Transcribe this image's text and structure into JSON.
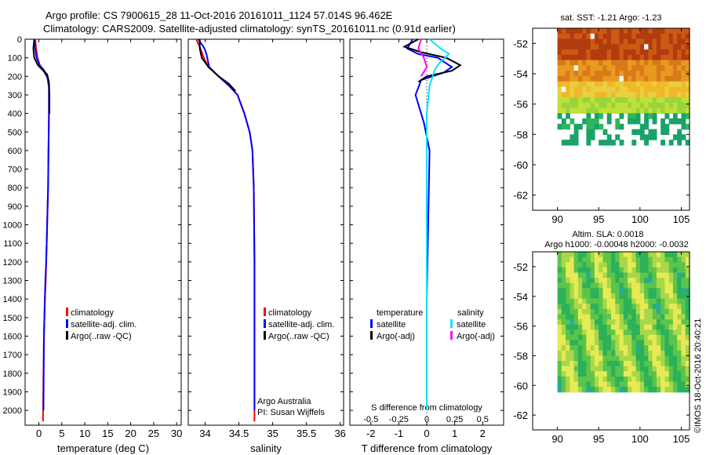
{
  "header": {
    "title_line1": "Argo profile: CS 7900615_28 11-Oct-2016 20161011_1124 57.014S 96.462E",
    "title_line2": "Climatology: CARS2009. Satellite-adjusted climatology: synTS_20161011.nc (0.91d earlier)"
  },
  "colors": {
    "climatology": "#ff0000",
    "satellite": "#0000ff",
    "argo": "#000000",
    "sat_salinity": "#00e5ff",
    "argo_salinity": "#ff00ff"
  },
  "chart_data": [
    {
      "type": "line",
      "panel": "temperature",
      "xlabel": "temperature (deg C)",
      "xlim": [
        -3,
        31
      ],
      "xticks": [
        0,
        5,
        10,
        15,
        20,
        25,
        30
      ],
      "ylim": [
        2080,
        0
      ],
      "yticks": [
        0,
        100,
        200,
        300,
        400,
        500,
        600,
        700,
        800,
        900,
        1000,
        1100,
        1200,
        1300,
        1400,
        1500,
        1600,
        1700,
        1800,
        1900,
        2000
      ],
      "legend": [
        "climatology",
        "satellite-adj. clim.",
        "Argo(..raw -QC)"
      ],
      "series": [
        {
          "name": "climatology",
          "x": [
            -0.8,
            -0.6,
            -0.3,
            0.2,
            1.0,
            1.9,
            2.2,
            2.2,
            2.1,
            2.0,
            1.8,
            1.6,
            1.5,
            1.3,
            1.2,
            1.1,
            1.0,
            0.9
          ],
          "y": [
            0,
            50,
            100,
            140,
            170,
            210,
            260,
            400,
            600,
            800,
            1000,
            1200,
            1300,
            1400,
            1500,
            1600,
            1800,
            2060
          ]
        },
        {
          "name": "satellite-adj. clim.",
          "x": [
            -1.0,
            -0.8,
            -0.5,
            0.2,
            1.2,
            1.9,
            2.2,
            2.2,
            2.1,
            2.0,
            1.8,
            1.6,
            1.4,
            1.3,
            1.2,
            1.1,
            1.0
          ],
          "y": [
            0,
            50,
            100,
            140,
            170,
            210,
            260,
            400,
            600,
            800,
            1000,
            1200,
            1300,
            1400,
            1500,
            1600,
            2000
          ]
        },
        {
          "name": "Argo(..raw -QC)",
          "x": [
            -1.0,
            -1.2,
            -1.0,
            -0.2,
            0.8,
            1.8,
            2.2,
            2.3,
            2.3
          ],
          "y": [
            0,
            50,
            100,
            140,
            165,
            190,
            230,
            300,
            400
          ]
        }
      ]
    },
    {
      "type": "line",
      "panel": "salinity",
      "xlabel": "salinity",
      "xlim": [
        33.75,
        36.05
      ],
      "xticks": [
        34,
        34.5,
        35,
        35.5,
        36
      ],
      "ylim": [
        2080,
        0
      ],
      "legend": [
        "climatology",
        "satellite-adj. clim.",
        "Argo(..raw -QC)"
      ],
      "annotation": [
        "Argo Australia",
        "PI: Susan Wijffels"
      ],
      "series": [
        {
          "name": "climatology",
          "x": [
            33.87,
            33.93,
            33.98,
            34.05,
            34.2,
            34.35,
            34.48,
            34.58,
            34.66,
            34.7,
            34.72,
            34.73,
            34.73,
            34.73
          ],
          "y": [
            0,
            50,
            100,
            150,
            200,
            250,
            300,
            400,
            500,
            600,
            800,
            1200,
            1600,
            2060
          ]
        },
        {
          "name": "satellite-adj. clim.",
          "x": [
            33.9,
            33.99,
            34.02,
            34.06,
            34.2,
            34.35,
            34.48,
            34.58,
            34.66,
            34.7,
            34.72,
            34.73,
            34.73,
            34.73
          ],
          "y": [
            0,
            50,
            80,
            150,
            200,
            250,
            300,
            400,
            500,
            600,
            800,
            1200,
            1600,
            2000
          ]
        },
        {
          "name": "Argo(..raw -QC)",
          "x": [
            33.92,
            33.92,
            33.95,
            34.05,
            34.2,
            34.35,
            34.45
          ],
          "y": [
            0,
            50,
            100,
            150,
            200,
            240,
            280
          ]
        }
      ]
    },
    {
      "type": "line",
      "panel": "difference",
      "xlabel": "T difference from climatology",
      "xlabel_top": "S difference from climatology",
      "xlim": [
        -2.75,
        2.75
      ],
      "xticks": [
        -2,
        -1,
        0,
        1,
        2
      ],
      "xticks_top": [
        -0.5,
        -0.25,
        0,
        0.25,
        0.5
      ],
      "ylim": [
        2080,
        0
      ],
      "legend_headers": [
        "temperature",
        "salinity"
      ],
      "legend": [
        "satellite",
        "Argo(-adj)",
        "satellite",
        "Argo(-adj)"
      ],
      "series": [
        {
          "name": "satellite",
          "kind": "temperature",
          "x": [
            -0.5,
            -0.7,
            -0.3,
            0.4,
            0.9,
            0.6,
            -0.2,
            -0.4,
            -0.1,
            0.1,
            0.05,
            0.0,
            0.0,
            0.0
          ],
          "y": [
            0,
            50,
            80,
            100,
            150,
            180,
            220,
            300,
            450,
            600,
            1000,
            1400,
            1800,
            2000
          ]
        },
        {
          "name": "Argo(-adj)",
          "kind": "temperature",
          "x": [
            -0.3,
            -0.8,
            -0.2,
            0.7,
            1.2,
            0.9,
            0.0,
            -0.3
          ],
          "y": [
            0,
            40,
            70,
            100,
            140,
            170,
            200,
            230
          ]
        },
        {
          "name": "satellite",
          "kind": "salinity",
          "x": [
            0.1,
            0.5,
            0.8,
            0.5,
            0.3,
            0.1,
            0.0,
            0.0,
            0.0
          ],
          "y": [
            0,
            50,
            80,
            120,
            160,
            250,
            400,
            1000,
            2000
          ]
        },
        {
          "name": "Argo(-adj)",
          "kind": "salinity",
          "x": [
            -0.2,
            -0.3,
            -0.1,
            0.0,
            -0.2
          ],
          "y": [
            0,
            50,
            100,
            150,
            200
          ]
        }
      ]
    },
    {
      "type": "heatmap",
      "panel": "sst_map",
      "title": "sat. SST: -1.21  Argo: -1.23",
      "xlim": [
        87,
        106
      ],
      "ylim": [
        -63,
        -51
      ],
      "xticks": [
        90,
        95,
        100,
        105
      ],
      "yticks": [
        -52,
        -54,
        -56,
        -58,
        -60,
        -62
      ]
    },
    {
      "type": "heatmap",
      "panel": "sla_map",
      "title": "Altim. SLA: 0.0018",
      "subtitle": "Argo h1000: -0.00048 h2000: -0.0032",
      "xlim": [
        87,
        106
      ],
      "ylim": [
        -63,
        -51
      ],
      "xticks": [
        90,
        95,
        100,
        105
      ],
      "yticks": [
        -52,
        -54,
        -56,
        -58,
        -60,
        -62
      ]
    }
  ],
  "footer": {
    "watermark": "©IMOS 18-Oct-2016 20:40:21"
  }
}
